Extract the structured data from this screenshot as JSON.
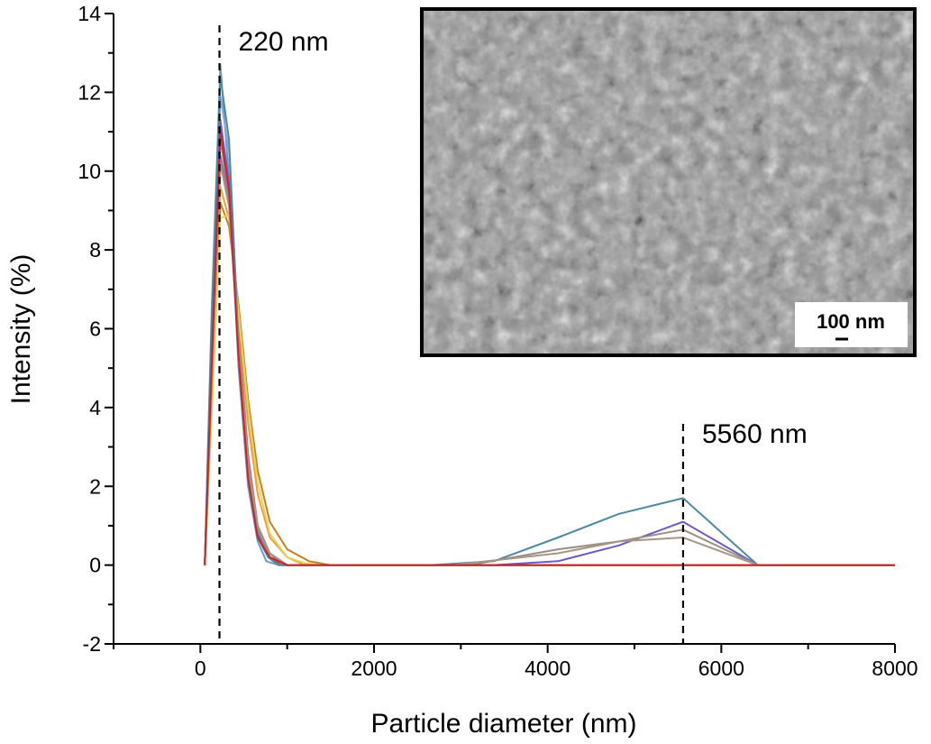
{
  "chart_data": {
    "type": "line",
    "xlabel": "Particle diameter (nm)",
    "ylabel": "Intensity (%)",
    "xlim": [
      -1000,
      8000
    ],
    "ylim": [
      -2,
      14
    ],
    "xticks": [
      0,
      2000,
      4000,
      6000,
      8000
    ],
    "yticks": [
      -2,
      0,
      2,
      4,
      6,
      8,
      10,
      12,
      14
    ],
    "grid": false,
    "legend": "none",
    "annotations": [
      {
        "label": "220 nm",
        "x": 220
      },
      {
        "label": "5560 nm",
        "x": 5560
      }
    ],
    "inset": {
      "kind": "SEM micrograph",
      "scalebar_label": "100 nm"
    },
    "series": [
      {
        "color": "#6b9ac4",
        "x": [
          50,
          130,
          230,
          330,
          440,
          550,
          660,
          760,
          900,
          8000
        ],
        "y": [
          0,
          6.5,
          12.7,
          9.8,
          5.0,
          2.0,
          0.6,
          0.1,
          0,
          0
        ]
      },
      {
        "color": "#8aa8cf",
        "x": [
          50,
          130,
          230,
          330,
          440,
          550,
          660,
          780,
          920,
          8000
        ],
        "y": [
          0,
          5.5,
          11.9,
          10.5,
          5.8,
          2.4,
          0.8,
          0.2,
          0,
          0
        ]
      },
      {
        "color": "#d32f2f",
        "x": [
          50,
          130,
          230,
          330,
          440,
          550,
          660,
          800,
          950,
          8000
        ],
        "y": [
          0,
          5.0,
          11.1,
          9.6,
          5.5,
          2.5,
          0.9,
          0.2,
          0,
          0
        ]
      },
      {
        "color": "#e0685f",
        "x": [
          50,
          130,
          230,
          330,
          440,
          550,
          660,
          800,
          950,
          8000
        ],
        "y": [
          0,
          4.8,
          10.1,
          9.9,
          6.0,
          2.8,
          1.0,
          0.3,
          0,
          0
        ]
      },
      {
        "color": "#e6a23c",
        "x": [
          50,
          130,
          230,
          330,
          440,
          550,
          660,
          800,
          1000,
          1200,
          8000
        ],
        "y": [
          0,
          4.3,
          9.6,
          8.8,
          6.3,
          3.6,
          1.8,
          0.7,
          0.2,
          0,
          0
        ]
      },
      {
        "color": "#c87e1a",
        "x": [
          50,
          130,
          230,
          330,
          440,
          550,
          660,
          800,
          1000,
          1250,
          1500,
          8000
        ],
        "y": [
          0,
          4.0,
          9.2,
          8.6,
          6.6,
          4.2,
          2.4,
          1.1,
          0.4,
          0.1,
          0,
          0
        ]
      },
      {
        "color": "#e8d25a",
        "x": [
          50,
          130,
          230,
          330,
          440,
          550,
          660,
          800,
          1000,
          1200,
          1400,
          8000
        ],
        "y": [
          0,
          3.8,
          8.8,
          8.9,
          6.4,
          4.0,
          2.1,
          0.8,
          0.2,
          0.05,
          0,
          0
        ]
      },
      {
        "color": "#9b66b8",
        "x": [
          50,
          130,
          230,
          330,
          440,
          550,
          660,
          800,
          1000,
          8000
        ],
        "y": [
          0,
          4.6,
          10.4,
          9.3,
          5.6,
          2.7,
          1.0,
          0.3,
          0,
          0
        ]
      },
      {
        "color": "#4c8a9e",
        "x": [
          50,
          130,
          230,
          330,
          440,
          550,
          660,
          780,
          900,
          1100,
          2660,
          3380,
          4120,
          4820,
          5560,
          6420,
          8000
        ],
        "y": [
          0,
          6.2,
          12.4,
          10.8,
          5.6,
          2.2,
          0.7,
          0.2,
          0,
          0,
          0,
          0.1,
          0.7,
          1.3,
          1.7,
          0,
          0
        ]
      },
      {
        "color": "#6a5acd",
        "x": [
          50,
          130,
          230,
          330,
          440,
          550,
          660,
          800,
          1000,
          3380,
          4120,
          4820,
          5560,
          6420,
          8000
        ],
        "y": [
          0,
          5.2,
          11.3,
          9.7,
          5.4,
          2.3,
          0.8,
          0.2,
          0,
          0,
          0.1,
          0.5,
          1.1,
          0,
          0
        ]
      },
      {
        "color": "#9a8f86",
        "x": [
          50,
          130,
          230,
          330,
          440,
          550,
          660,
          800,
          1000,
          3100,
          4120,
          4820,
          5560,
          6420,
          8000
        ],
        "y": [
          0,
          4.9,
          10.8,
          9.4,
          5.5,
          2.4,
          0.9,
          0.2,
          0,
          0,
          0.4,
          0.6,
          0.9,
          0,
          0
        ]
      },
      {
        "color": "#a89483",
        "x": [
          50,
          130,
          230,
          330,
          440,
          550,
          660,
          800,
          1000,
          2900,
          4120,
          4820,
          5560,
          6420,
          8000
        ],
        "y": [
          0,
          4.7,
          10.2,
          9.1,
          5.6,
          2.6,
          1.0,
          0.3,
          0,
          0,
          0.3,
          0.6,
          0.7,
          0,
          0
        ]
      },
      {
        "color": "#c62828",
        "x": [
          50,
          130,
          230,
          330,
          440,
          550,
          660,
          800,
          1000,
          3150,
          5560,
          6420,
          8000
        ],
        "y": [
          0,
          5.1,
          11.0,
          9.5,
          5.3,
          2.2,
          0.7,
          0.2,
          0,
          0,
          0,
          0,
          0
        ]
      }
    ]
  }
}
